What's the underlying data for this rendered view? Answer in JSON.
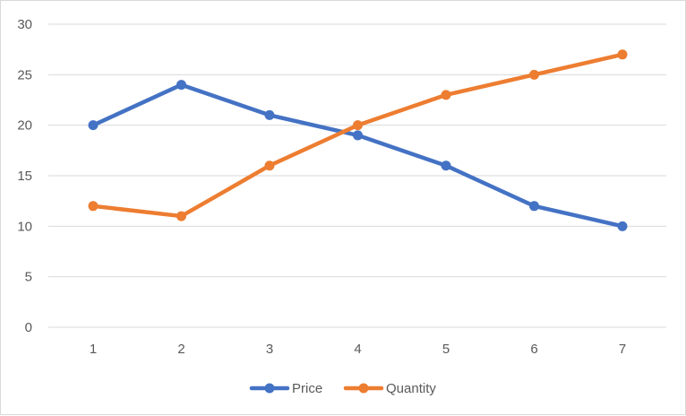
{
  "chart_data": {
    "type": "line",
    "title": "",
    "xlabel": "",
    "ylabel": "",
    "x": [
      1,
      2,
      3,
      4,
      5,
      6,
      7
    ],
    "x_tick_labels": [
      "1",
      "2",
      "3",
      "4",
      "5",
      "6",
      "7"
    ],
    "y_ticks": [
      0,
      5,
      10,
      15,
      20,
      25,
      30
    ],
    "y_tick_labels": [
      "0",
      "5",
      "10",
      "15",
      "20",
      "25",
      "30"
    ],
    "ylim": [
      0,
      30
    ],
    "grid": "horizontal",
    "legend_position": "bottom",
    "series": [
      {
        "name": "Price",
        "color": "#4472c4",
        "values": [
          20,
          24,
          21,
          19,
          16,
          12,
          10
        ]
      },
      {
        "name": "Quantity",
        "color": "#ed7d31",
        "values": [
          12,
          11,
          16,
          20,
          23,
          25,
          27
        ]
      }
    ]
  },
  "colors": {
    "gridline": "#d9d9d9",
    "axis": "#d9d9d9",
    "text": "#595959"
  }
}
